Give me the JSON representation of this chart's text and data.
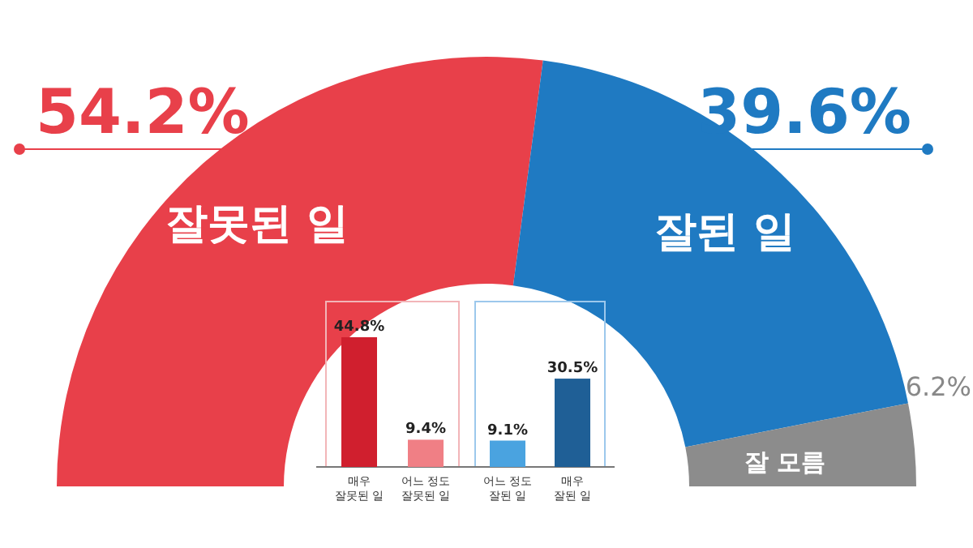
{
  "chart_data": [
    {
      "type": "donut",
      "categories": [
        "잘못된 일",
        "잘된 일",
        "잘 모름"
      ],
      "values": [
        54.2,
        39.6,
        6.2
      ],
      "colors": [
        "#e8404a",
        "#1f7ac2",
        "#8c8c8c"
      ],
      "value_labels": [
        "54.2%",
        "39.6%",
        "6.2%"
      ]
    },
    {
      "type": "bar",
      "categories": [
        "매우 잘못된 일",
        "어느 정도 잘못된 일"
      ],
      "values": [
        44.8,
        9.4
      ],
      "colors": [
        "#d01f2e",
        "#f07f85"
      ],
      "value_labels": [
        "44.8%",
        "9.4%"
      ]
    },
    {
      "type": "bar",
      "categories": [
        "어느 정도 잘된 일",
        "매우 잘된 일"
      ],
      "values": [
        9.1,
        30.5
      ],
      "colors": [
        "#4aa3e0",
        "#1f5f96"
      ],
      "value_labels": [
        "9.1%",
        "30.5%"
      ]
    }
  ]
}
